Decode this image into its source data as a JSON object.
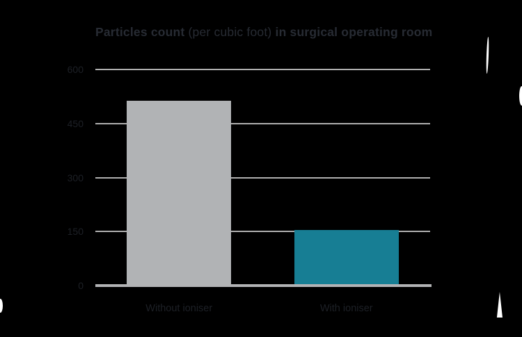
{
  "chart_data": {
    "type": "bar",
    "title": "Particles count (per cubic foot) in surgical operating room",
    "title_parts": [
      {
        "text": "Particles count ",
        "bold": true
      },
      {
        "text": "(per cubic foot) ",
        "bold": false
      },
      {
        "text": "in surgical operating room",
        "bold": true
      }
    ],
    "categories": [
      "Without ioniser",
      "With ioniser"
    ],
    "values": [
      510,
      150
    ],
    "bar_colors": [
      "#b1b3b5",
      "#177e94"
    ],
    "xlabel": "",
    "ylabel": "",
    "ylim": [
      0,
      600
    ],
    "yticks": [
      0,
      150,
      300,
      450,
      600
    ],
    "grid": true,
    "legend_position": "none",
    "colors": {
      "background": "#000000",
      "gridline": "#b0b0b0",
      "axis": "#b2b3b5",
      "title_text": "#272b33",
      "tick_text": "#1d2026",
      "category_text": "#1d2026",
      "artifact": "#ffffff"
    }
  }
}
